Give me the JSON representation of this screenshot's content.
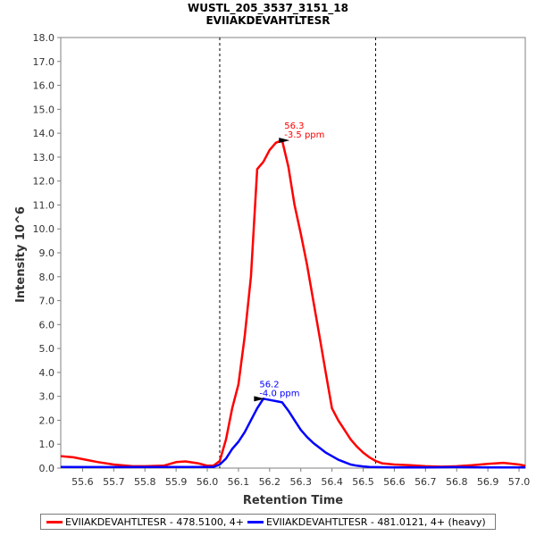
{
  "chart_data": {
    "type": "line",
    "title": "WUSTL_205_3537_3151_18",
    "subtitle": "EVIIAKDEVAHTLTESR",
    "xlabel": "Retention Time",
    "ylabel": "Intensity 10^6",
    "xlim": [
      55.53,
      57.02
    ],
    "ylim": [
      0,
      18
    ],
    "xticks": [
      "55.6",
      "55.7",
      "55.8",
      "55.9",
      "56.0",
      "56.1",
      "56.2",
      "56.3",
      "56.4",
      "56.5",
      "56.6",
      "56.7",
      "56.8",
      "56.9",
      "57.0"
    ],
    "yticks": [
      "0.0",
      "1.0",
      "2.0",
      "3.0",
      "4.0",
      "5.0",
      "6.0",
      "7.0",
      "8.0",
      "9.0",
      "10.0",
      "11.0",
      "12.0",
      "13.0",
      "14.0",
      "15.0",
      "16.0",
      "17.0",
      "18.0"
    ],
    "boundaries": [
      56.04,
      56.54
    ],
    "series": [
      {
        "name": "EVIIAKDEVAHTLTESR - 478.5100, 4+",
        "color": "#ff0000",
        "x": [
          55.53,
          55.57,
          55.61,
          55.65,
          55.7,
          55.76,
          55.8,
          55.86,
          55.9,
          55.93,
          55.97,
          56.0,
          56.02,
          56.04,
          56.06,
          56.08,
          56.1,
          56.12,
          56.14,
          56.16,
          56.18,
          56.2,
          56.22,
          56.24,
          56.26,
          56.28,
          56.3,
          56.32,
          56.34,
          56.36,
          56.38,
          56.4,
          56.42,
          56.44,
          56.46,
          56.48,
          56.5,
          56.52,
          56.54,
          56.56,
          56.6,
          56.65,
          56.7,
          56.75,
          56.8,
          56.85,
          56.9,
          56.95,
          57.0,
          57.02
        ],
        "values": [
          0.5,
          0.45,
          0.35,
          0.25,
          0.15,
          0.08,
          0.08,
          0.1,
          0.25,
          0.28,
          0.2,
          0.1,
          0.1,
          0.3,
          1.2,
          2.5,
          3.5,
          5.5,
          8.0,
          12.5,
          12.8,
          13.3,
          13.6,
          13.7,
          12.6,
          11.0,
          9.8,
          8.5,
          7.0,
          5.5,
          4.0,
          2.5,
          2.0,
          1.6,
          1.2,
          0.9,
          0.65,
          0.45,
          0.3,
          0.2,
          0.15,
          0.12,
          0.08,
          0.06,
          0.08,
          0.12,
          0.18,
          0.22,
          0.15,
          0.1
        ]
      },
      {
        "name": "EVIIAKDEVAHTLTESR - 481.0121, 4+ (heavy)",
        "color": "#0000ff",
        "x": [
          55.53,
          55.7,
          55.9,
          56.0,
          56.02,
          56.04,
          56.06,
          56.08,
          56.1,
          56.12,
          56.14,
          56.16,
          56.18,
          56.2,
          56.22,
          56.24,
          56.26,
          56.28,
          56.3,
          56.32,
          56.34,
          56.36,
          56.38,
          56.4,
          56.42,
          56.44,
          56.46,
          56.48,
          56.5,
          56.52,
          56.54,
          56.6,
          56.7,
          56.8,
          56.9,
          57.0,
          57.02
        ],
        "values": [
          0.05,
          0.04,
          0.05,
          0.05,
          0.05,
          0.15,
          0.4,
          0.8,
          1.1,
          1.5,
          2.0,
          2.5,
          2.9,
          2.85,
          2.8,
          2.75,
          2.4,
          2.0,
          1.6,
          1.3,
          1.05,
          0.85,
          0.65,
          0.5,
          0.35,
          0.25,
          0.15,
          0.1,
          0.07,
          0.05,
          0.04,
          0.03,
          0.03,
          0.04,
          0.03,
          0.03,
          0.03
        ]
      }
    ],
    "annotations": [
      {
        "series": 0,
        "x": 56.27,
        "y": 13.7,
        "rt": "56.3",
        "ppm": "-3.5 ppm"
      },
      {
        "series": 1,
        "x": 56.19,
        "y": 2.9,
        "rt": "56.2",
        "ppm": "-4.0 ppm"
      }
    ]
  }
}
